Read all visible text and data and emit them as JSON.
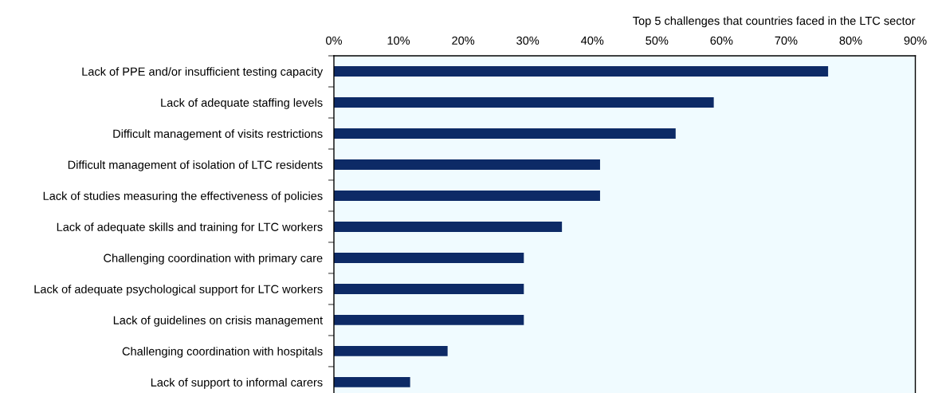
{
  "chart_data": {
    "type": "bar",
    "orientation": "horizontal",
    "title": "Top 5 challenges that countries faced in the LTC sector",
    "categories": [
      "Lack of PPE and/or insufficient testing capacity",
      "Lack of adequate staffing levels",
      "Difficult management of visits restrictions",
      "Difficult management of isolation of LTC residents",
      "Lack of studies measuring the effectiveness of policies",
      "Lack of adequate skills and training for LTC workers",
      "Challenging coordination with primary care",
      "Lack of adequate psychological support for LTC workers",
      "Lack of guidelines on crisis management",
      "Challenging coordination with hospitals",
      "Lack of support to informal carers"
    ],
    "values": [
      76.5,
      58.8,
      52.9,
      41.2,
      41.2,
      35.3,
      29.4,
      29.4,
      29.4,
      17.6,
      11.8
    ],
    "color": "#0d2a66",
    "xlim": [
      0,
      90
    ],
    "xticks": [
      {
        "value": 0,
        "label": "0%"
      },
      {
        "value": 10,
        "label": "10%"
      },
      {
        "value": 20,
        "label": "20%"
      },
      {
        "value": 30,
        "label": "30%"
      },
      {
        "value": 40,
        "label": "40%"
      },
      {
        "value": 50,
        "label": "50%"
      },
      {
        "value": 60,
        "label": "60%"
      },
      {
        "value": 70,
        "label": "70%"
      },
      {
        "value": 80,
        "label": "80%"
      },
      {
        "value": 90,
        "label": "90%"
      }
    ],
    "grid": false,
    "legend": false
  }
}
